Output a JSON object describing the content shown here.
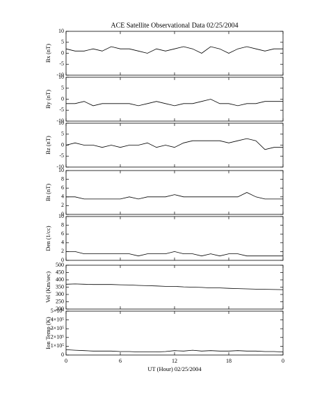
{
  "chart_data": [
    {
      "type": "line",
      "title": "ACE Satellite Observational Data   02/25/2004",
      "ylabel": "Bx (nT)",
      "ylim": [
        -10,
        10
      ],
      "yticks": [
        -10,
        -5,
        0,
        5,
        10
      ],
      "x": [
        0,
        1,
        2,
        3,
        4,
        5,
        6,
        7,
        8,
        9,
        10,
        11,
        12,
        13,
        14,
        15,
        16,
        17,
        18,
        19,
        20,
        21,
        22,
        23,
        24
      ],
      "values": [
        2,
        1,
        1,
        2,
        1,
        3,
        2,
        2,
        1,
        0,
        2,
        1,
        2,
        3,
        2,
        0,
        3,
        2,
        0,
        2,
        3,
        2,
        1,
        2,
        2
      ]
    },
    {
      "type": "line",
      "ylabel": "By (nT)",
      "ylim": [
        -10,
        10
      ],
      "yticks": [
        -10,
        -5,
        0,
        5,
        10
      ],
      "x": [
        0,
        1,
        2,
        3,
        4,
        5,
        6,
        7,
        8,
        9,
        10,
        11,
        12,
        13,
        14,
        15,
        16,
        17,
        18,
        19,
        20,
        21,
        22,
        23,
        24
      ],
      "values": [
        -2,
        -2,
        -1,
        -3,
        -2,
        -2,
        -2,
        -2,
        -3,
        -2,
        -1,
        -2,
        -3,
        -2,
        -2,
        -1,
        0,
        -2,
        -2,
        -3,
        -2,
        -2,
        -1,
        -1,
        -1
      ]
    },
    {
      "type": "line",
      "ylabel": "Bz (nT)",
      "ylim": [
        -10,
        10
      ],
      "yticks": [
        -10,
        -5,
        0,
        5,
        10
      ],
      "x": [
        0,
        1,
        2,
        3,
        4,
        5,
        6,
        7,
        8,
        9,
        10,
        11,
        12,
        13,
        14,
        15,
        16,
        17,
        18,
        19,
        20,
        21,
        22,
        23,
        24
      ],
      "values": [
        0,
        1,
        0,
        0,
        -1,
        0,
        -1,
        0,
        0,
        1,
        -1,
        0,
        -1,
        1,
        2,
        2,
        2,
        2,
        1,
        2,
        3,
        2,
        -2,
        -1,
        -1
      ]
    },
    {
      "type": "line",
      "ylabel": "Bt (nT)",
      "ylim": [
        0,
        10
      ],
      "yticks": [
        0,
        2,
        4,
        6,
        8,
        10
      ],
      "x": [
        0,
        1,
        2,
        3,
        4,
        5,
        6,
        7,
        8,
        9,
        10,
        11,
        12,
        13,
        14,
        15,
        16,
        17,
        18,
        19,
        20,
        21,
        22,
        23,
        24
      ],
      "values": [
        4,
        4,
        3.5,
        3.5,
        3.5,
        3.5,
        3.5,
        4,
        3.5,
        4,
        4,
        4,
        4.5,
        4,
        4,
        4,
        4,
        4,
        4,
        4,
        5,
        4,
        3.5,
        3.5,
        3.5
      ]
    },
    {
      "type": "line",
      "ylabel": "Den (1/cc)",
      "ylim": [
        0,
        10
      ],
      "yticks": [
        0,
        2,
        4,
        6,
        8,
        10
      ],
      "x": [
        0,
        1,
        2,
        3,
        4,
        5,
        6,
        7,
        8,
        9,
        10,
        11,
        12,
        13,
        14,
        15,
        16,
        17,
        18,
        19,
        20,
        21,
        22,
        23,
        24
      ],
      "values": [
        2,
        2,
        1.5,
        1.5,
        1.5,
        1.5,
        1.5,
        1.5,
        1,
        1.5,
        1.5,
        1.5,
        2,
        1.5,
        1.5,
        1,
        1.5,
        1,
        1.5,
        1.5,
        1,
        1,
        1,
        1,
        1
      ]
    },
    {
      "type": "line",
      "ylabel": "Vel (Km/sec)",
      "ylim": [
        200,
        500
      ],
      "yticks": [
        200,
        250,
        300,
        350,
        400,
        450,
        500
      ],
      "x": [
        0,
        1,
        2,
        3,
        4,
        5,
        6,
        7,
        8,
        9,
        10,
        11,
        12,
        13,
        14,
        15,
        16,
        17,
        18,
        19,
        20,
        21,
        22,
        23,
        24
      ],
      "values": [
        370,
        372,
        370,
        368,
        368,
        368,
        366,
        365,
        362,
        360,
        358,
        355,
        355,
        352,
        350,
        348,
        345,
        345,
        342,
        340,
        338,
        336,
        335,
        334,
        333
      ]
    },
    {
      "type": "line",
      "ylabel": "Ion Temp (K)",
      "xlabel": "UT (Hour)   02/25/2004",
      "ylim": [
        0,
        500000
      ],
      "yticks": [
        0,
        {
          "value": 100000,
          "label": "1×10⁵"
        },
        {
          "value": 200000,
          "label": "2×10⁵"
        },
        {
          "value": 300000,
          "label": "3×10⁵"
        },
        {
          "value": 400000,
          "label": "4×10⁵"
        },
        {
          "value": 500000,
          "label": "5×10⁵"
        }
      ],
      "xlim": [
        0,
        24
      ],
      "xticks": [
        0,
        6,
        12,
        18,
        {
          "value": 24,
          "label": "0"
        }
      ],
      "x": [
        0,
        1,
        2,
        3,
        4,
        5,
        6,
        7,
        8,
        9,
        10,
        11,
        12,
        13,
        14,
        15,
        16,
        17,
        18,
        19,
        20,
        21,
        22,
        23,
        24
      ],
      "values": [
        60000,
        55000,
        50000,
        45000,
        45000,
        45000,
        40000,
        40000,
        35000,
        35000,
        35000,
        40000,
        50000,
        45000,
        55000,
        45000,
        50000,
        45000,
        45000,
        50000,
        45000,
        45000,
        40000,
        40000,
        35000
      ]
    }
  ]
}
